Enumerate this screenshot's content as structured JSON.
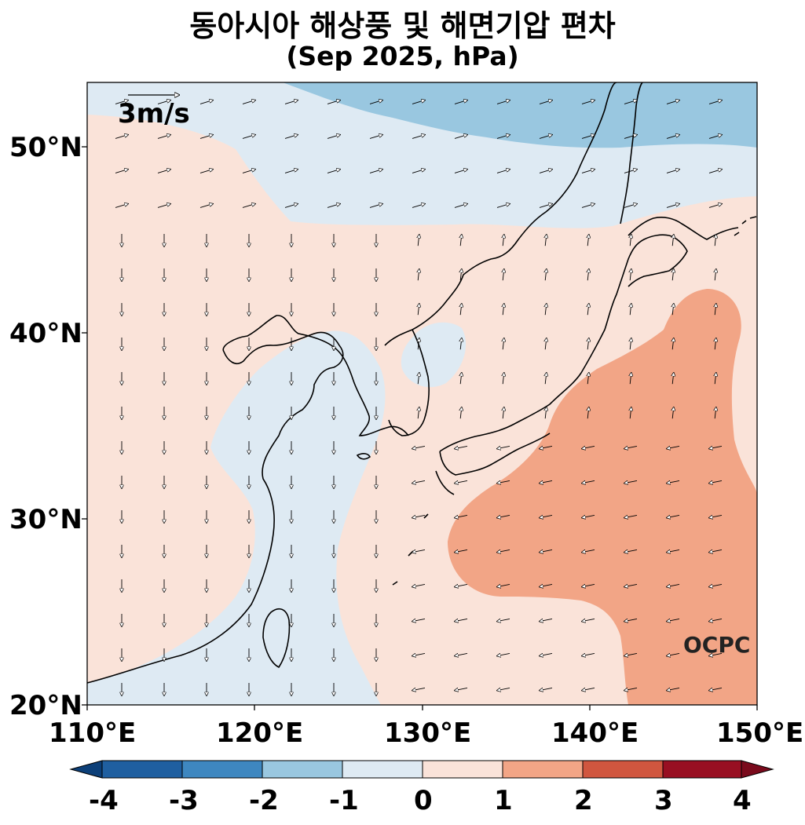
{
  "title": "동아시아 해상풍 및 해면기압 편차",
  "subtitle": "(Sep 2025, hPa)",
  "wind_scale_label": "3m/s",
  "logo_text": "OCPC",
  "axes": {
    "lon_labels": [
      "110°E",
      "120°E",
      "130°E",
      "140°E",
      "150°E"
    ],
    "lat_labels": [
      "50°N",
      "40°N",
      "30°N",
      "20°N"
    ],
    "lon_range": [
      110,
      150
    ],
    "lat_range": [
      20,
      53.5
    ]
  },
  "colorbar": {
    "ticks": [
      "-4",
      "-3",
      "-2",
      "-1",
      "0",
      "1",
      "2",
      "3",
      "4"
    ],
    "colors": [
      "#1f5fa0",
      "#3e87c0",
      "#99c7e0",
      "#deeaf3",
      "#fae3d9",
      "#f2a586",
      "#d0563f",
      "#980f22"
    ],
    "extend_low_color": "#0c3f78",
    "extend_high_color": "#7a0a1c"
  },
  "chart_data": {
    "type": "map",
    "variable": "sea level pressure anomaly (hPa) with surface wind anomaly vectors",
    "contour_levels": [
      -4,
      -3,
      -2,
      -1,
      0,
      1,
      2,
      3,
      4
    ],
    "regions": [
      {
        "level": "-2 to -1",
        "area": "northern Okhotsk / far north band near 50-53°N"
      },
      {
        "level": "-1 to 0",
        "area": "Yellow Sea, East China Sea, Taiwan Strait, northeast China"
      },
      {
        "level": "0 to 1",
        "area": "Korea, Sea of Japan, Japan, subtropical western Pacific"
      },
      {
        "level": "1 to 2",
        "area": "east and south of Japan, 22-42°N, 133-150°E"
      }
    ]
  }
}
